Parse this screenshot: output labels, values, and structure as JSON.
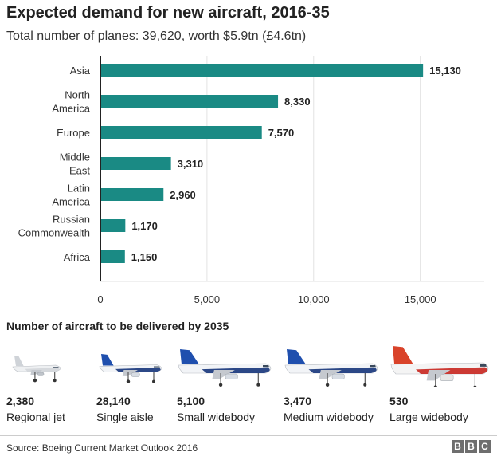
{
  "header": {
    "title": "Expected demand for new aircraft, 2016-35",
    "subtitle": "Total number of planes: 39,620, worth $5.9tn (£4.6tn)"
  },
  "chart_data": {
    "type": "bar",
    "orientation": "horizontal",
    "categories": [
      [
        "Asia"
      ],
      [
        "North",
        "America"
      ],
      [
        "Europe"
      ],
      [
        "Middle",
        "East"
      ],
      [
        "Latin",
        "America"
      ],
      [
        "Russian",
        "Commonwealth"
      ],
      [
        "Africa"
      ]
    ],
    "values": [
      15130,
      8330,
      7570,
      3310,
      2960,
      1170,
      1150
    ],
    "value_labels": [
      "15,130",
      "8,330",
      "7,570",
      "3,310",
      "2,960",
      "1,170",
      "1,150"
    ],
    "xlim": [
      0,
      18000
    ],
    "ticks": [
      0,
      5000,
      10000,
      15000
    ],
    "tick_labels": [
      "0",
      "5,000",
      "10,000",
      "15,000"
    ],
    "grid": true,
    "colors": {
      "bar": "#1a8a84",
      "grid": "#e2e2e2",
      "axis": "#222222",
      "label": "#333333",
      "value": "#222222"
    }
  },
  "deliveries": {
    "heading": "Number of aircraft to be delivered by 2035",
    "items": [
      {
        "count": "2,380",
        "label": "Regional jet",
        "icon": "regional-jet-icon",
        "livery": "plain"
      },
      {
        "count": "28,140",
        "label": "Single aisle",
        "icon": "single-aisle-jet-icon",
        "livery": "blue"
      },
      {
        "count": "5,100",
        "label": "Small widebody",
        "icon": "small-widebody-jet-icon",
        "livery": "blue"
      },
      {
        "count": "3,470",
        "label": "Medium widebody",
        "icon": "medium-widebody-jet-icon",
        "livery": "blue"
      },
      {
        "count": "530",
        "label": "Large widebody",
        "icon": "large-widebody-jet-icon",
        "livery": "red"
      }
    ]
  },
  "footer": {
    "source": "Source: Boeing Current Market Outlook 2016",
    "logo_letters": [
      "B",
      "B",
      "C"
    ]
  }
}
